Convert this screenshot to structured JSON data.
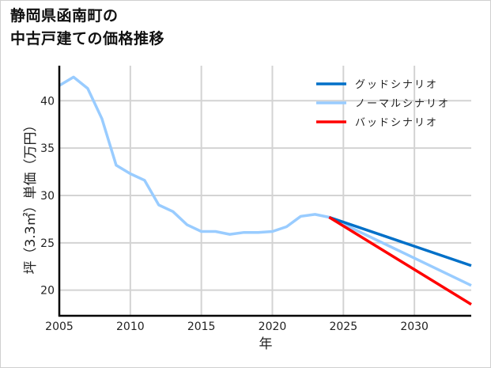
{
  "title": {
    "line1": "静岡県函南町の",
    "line2": "中古戸建ての価格推移"
  },
  "chart_data": {
    "type": "line",
    "title": "静岡県函南町の中古戸建ての価格推移",
    "xlabel": "年",
    "ylabel": "坪（3.3㎡）単価（万円）",
    "xlim": [
      2005,
      2034
    ],
    "ylim": [
      17.3,
      43.7
    ],
    "x_ticks": [
      2005,
      2010,
      2015,
      2020,
      2025,
      2030
    ],
    "y_ticks": [
      20,
      25,
      30,
      35,
      40
    ],
    "grid": true,
    "legend_position": "upper right",
    "series": [
      {
        "name": "グッドシナリオ",
        "color": "#0070c8",
        "x": [
          2024,
          2034
        ],
        "values": [
          27.7,
          22.6
        ]
      },
      {
        "name": "ノーマルシナリオ",
        "color": "#99ccff",
        "x": [
          2005,
          2006,
          2007,
          2008,
          2009,
          2010,
          2011,
          2012,
          2013,
          2014,
          2015,
          2016,
          2017,
          2018,
          2019,
          2020,
          2021,
          2022,
          2023,
          2024,
          2034
        ],
        "values": [
          41.6,
          42.5,
          41.3,
          38.1,
          33.2,
          32.3,
          31.6,
          29.0,
          28.3,
          26.9,
          26.2,
          26.2,
          25.9,
          26.1,
          26.1,
          26.2,
          26.7,
          27.8,
          28.0,
          27.7,
          20.5
        ]
      },
      {
        "name": "バッドシナリオ",
        "color": "#ff0000",
        "x": [
          2024,
          2034
        ],
        "values": [
          27.7,
          18.5
        ]
      }
    ]
  }
}
